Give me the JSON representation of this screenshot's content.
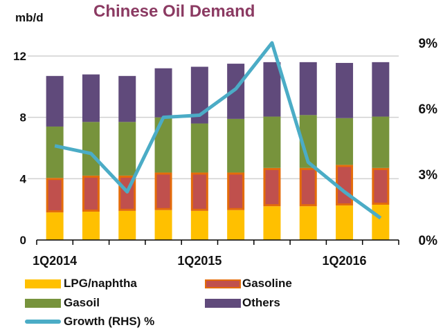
{
  "chart_data": {
    "type": "bar",
    "title": "Chinese Oil Demand",
    "ylabel": "mb/d",
    "ylim": [
      0,
      12
    ],
    "yticks": [
      "0",
      "4",
      "8",
      "12"
    ],
    "y2lim": [
      0,
      9
    ],
    "y2ticks": [
      "0%",
      "3%",
      "6%",
      "9%"
    ],
    "tick_labels": [
      "1Q2014",
      "",
      "",
      "",
      "1Q2015",
      "",
      "",
      "",
      "1Q2016",
      ""
    ],
    "stacked": true,
    "grid": true,
    "legend": "bottom",
    "series": [
      {
        "name": "LPG/naphtha",
        "color": "#FFC000",
        "values": [
          1.8,
          1.85,
          1.9,
          1.95,
          1.9,
          1.95,
          2.2,
          2.2,
          2.25,
          2.3
        ]
      },
      {
        "name": "Gasoline",
        "color": "#C0504D",
        "border": "#E46C0A",
        "values": [
          2.25,
          2.35,
          2.3,
          2.45,
          2.5,
          2.45,
          2.5,
          2.5,
          2.65,
          2.4
        ]
      },
      {
        "name": "Gasoil",
        "color": "#77933C",
        "values": [
          3.35,
          3.5,
          3.5,
          3.6,
          3.2,
          3.5,
          3.35,
          3.45,
          3.05,
          3.35
        ]
      },
      {
        "name": "Others",
        "color": "#604A7B",
        "values": [
          3.3,
          3.1,
          3.0,
          3.2,
          3.7,
          3.6,
          3.55,
          3.45,
          3.6,
          3.55
        ]
      }
    ],
    "line": {
      "name": "Growth (RHS) %",
      "color": "#4BACC6",
      "axis": "right",
      "values": [
        4.3,
        3.95,
        2.2,
        5.6,
        5.7,
        6.9,
        9.0,
        3.55,
        2.2,
        1.0
      ]
    }
  }
}
